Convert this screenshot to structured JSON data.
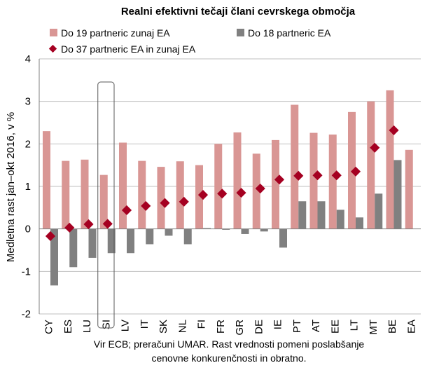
{
  "chart_data": {
    "type": "bar",
    "title": "Realni efektivni tečaji člani cevrskega območja",
    "ylabel": "Medletna rast jan–okt 2016, v %",
    "xlabel": "",
    "ylim": [
      -2,
      4
    ],
    "yticks": [
      -2,
      -1,
      0,
      1,
      2,
      3,
      4
    ],
    "grid": true,
    "legend_position": "top",
    "highlighted_category": "SI",
    "categories": [
      "CY",
      "ES",
      "LU",
      "SI",
      "LV",
      "IT",
      "SK",
      "NL",
      "FI",
      "FR",
      "GR",
      "DE",
      "IE",
      "PT",
      "AT",
      "EE",
      "LT",
      "MT",
      "BE",
      "EA"
    ],
    "series": [
      {
        "name": "Do 19 partnericzunaj EA",
        "label": "Do 19 partneric zunaj EA",
        "kind": "bar",
        "color": "#d99694",
        "values": [
          2.3,
          1.6,
          1.63,
          1.27,
          2.03,
          1.6,
          1.46,
          1.59,
          1.5,
          2.0,
          2.27,
          1.77,
          2.09,
          2.92,
          2.26,
          2.22,
          2.75,
          3.0,
          3.26,
          1.86
        ]
      },
      {
        "name": "Do 18 partneric EA",
        "label": "Do 18 partneric EA",
        "kind": "bar",
        "color": "#808080",
        "values": [
          -1.33,
          -0.9,
          -0.68,
          -0.57,
          -0.57,
          -0.36,
          -0.16,
          -0.36,
          0.02,
          -0.02,
          -0.12,
          -0.06,
          -0.44,
          0.65,
          0.65,
          0.45,
          0.27,
          0.83,
          1.62,
          null
        ]
      },
      {
        "name": "Do 37 partneric EA in zunaj EA",
        "label": "Do 37 partneric EA in zunaj EA",
        "kind": "marker",
        "color": "#a50021",
        "values": [
          -0.17,
          0.03,
          0.11,
          0.12,
          0.44,
          0.54,
          0.61,
          0.64,
          0.8,
          0.83,
          0.85,
          0.95,
          1.16,
          1.25,
          1.26,
          1.26,
          1.35,
          1.91,
          2.32,
          null
        ]
      }
    ],
    "source_line1": "Vir ECB; preračuni UMAR. Rast vrednosti pomeni poslabšanje",
    "source_line2": "cenovne konkurenčnosti in obratno."
  },
  "colors": {
    "grid": "#bfbfbf",
    "axis": "#808080",
    "highlight_box": "#595959"
  }
}
